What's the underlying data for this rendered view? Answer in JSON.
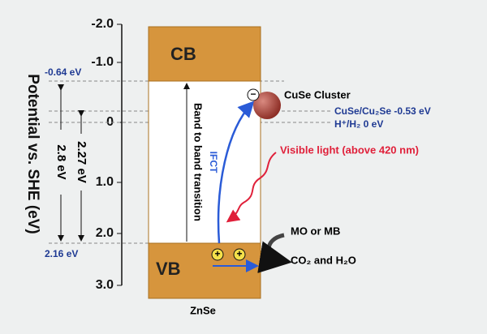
{
  "axis": {
    "label": "Potential vs. SHE (eV)",
    "ticks": [
      "-2.0",
      "-1.0",
      "0",
      "1.0",
      "2.0",
      "3.0"
    ]
  },
  "bands": {
    "cb": "CB",
    "vb": "VB",
    "material": "ZnSe"
  },
  "levels": {
    "cb_edge": "-0.64 eV",
    "vb_edge": "2.16 eV",
    "cuse": "CuSe/Cu₂Se  -0.53 eV",
    "hydrogen": "H⁺/H₂ 0 eV"
  },
  "gaps": {
    "outer": "2.8 eV",
    "inner": "2.27 eV"
  },
  "labels": {
    "transition": "Band to band transition",
    "ifct": "IFCT",
    "cluster": "CuSe Cluster",
    "light": "Visible light (above 420 nm)",
    "pollutant": "MO or MB",
    "products": "CO₂ and H₂O"
  },
  "carriers": {
    "electron": "−",
    "holes": [
      "+",
      "+"
    ]
  }
}
